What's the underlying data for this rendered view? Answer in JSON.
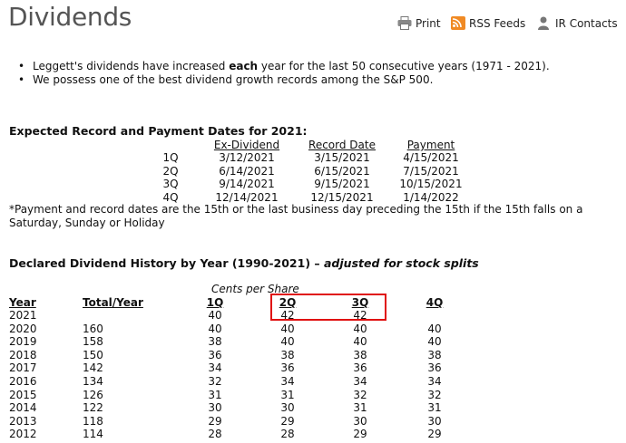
{
  "header": {
    "title": "Dividends",
    "tools": [
      {
        "label": "Print",
        "icon": "printer-icon"
      },
      {
        "label": "RSS Feeds",
        "icon": "rss-icon"
      },
      {
        "label": "IR Contacts",
        "icon": "person-icon"
      }
    ]
  },
  "bullets": [
    {
      "pre": "Leggett's dividends have increased ",
      "bold": "each",
      "post": " year for the last 50 consecutive years (1971 - 2021)."
    },
    {
      "pre": "We possess one of the best dividend growth records among the S&P 500.",
      "bold": "",
      "post": ""
    }
  ],
  "expected": {
    "title": "Expected Record and Payment Dates for 2021:",
    "headers": [
      "Ex-Dividend",
      "Record Date",
      "Payment"
    ],
    "rows": [
      [
        "1Q",
        "3/12/2021",
        "3/15/2021",
        "4/15/2021"
      ],
      [
        "2Q",
        "6/14/2021",
        "6/15/2021",
        "7/15/2021"
      ],
      [
        "3Q",
        "9/14/2021",
        "9/15/2021",
        "10/15/2021"
      ],
      [
        "4Q",
        "12/14/2021",
        "12/15/2021",
        "1/14/2022"
      ]
    ],
    "note": "*Payment and record dates are the 15th or the last business day preceding the 15th if the 15th falls on a Saturday, Sunday or Holiday"
  },
  "history": {
    "title": "Declared Dividend History by Year (1990-2021)",
    "dash": " – ",
    "subtitle": "adjusted for stock splits",
    "units": "Cents per Share",
    "headers": [
      "Year",
      "Total/Year",
      "1Q",
      "2Q",
      "3Q",
      "4Q"
    ],
    "rows": [
      [
        "2021",
        "",
        "40",
        "42",
        "42",
        ""
      ],
      [
        "2020",
        "160",
        "40",
        "40",
        "40",
        "40"
      ],
      [
        "2019",
        "158",
        "38",
        "40",
        "40",
        "40"
      ],
      [
        "2018",
        "150",
        "36",
        "38",
        "38",
        "38"
      ],
      [
        "2017",
        "142",
        "34",
        "36",
        "36",
        "36"
      ],
      [
        "2016",
        "134",
        "32",
        "34",
        "34",
        "34"
      ],
      [
        "2015",
        "126",
        "31",
        "31",
        "32",
        "32"
      ],
      [
        "2014",
        "122",
        "30",
        "30",
        "31",
        "31"
      ],
      [
        "2013",
        "118",
        "29",
        "29",
        "30",
        "30"
      ],
      [
        "2012",
        "114",
        "28",
        "28",
        "29",
        "29"
      ]
    ]
  }
}
